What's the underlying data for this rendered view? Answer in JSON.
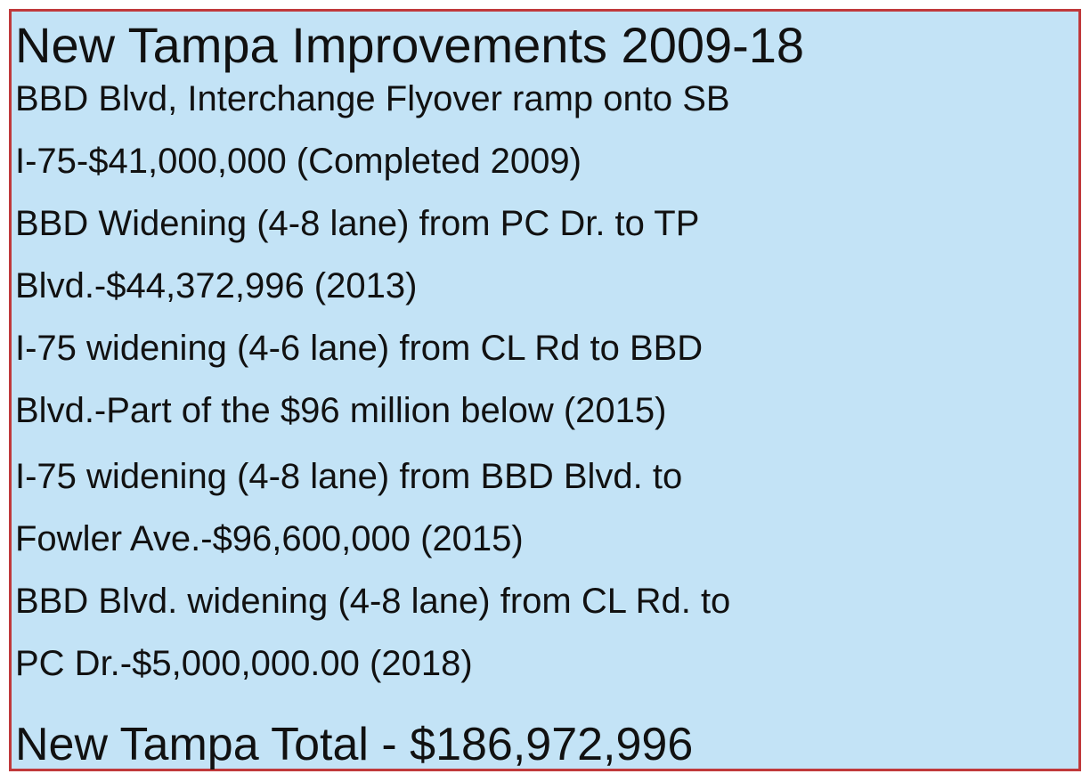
{
  "title": "New Tampa Improvements 2009-18",
  "items": [
    {
      "lines": [
        "BBD Blvd, Interchange Flyover ramp onto SB",
        "I-75-$41,000,000 (Completed 2009)"
      ]
    },
    {
      "lines": [
        "BBD Widening (4-8 lane) from PC Dr. to TP",
        "Blvd.-$44,372,996 (2013)"
      ]
    },
    {
      "lines": [
        "I-75 widening (4-6 lane) from CL Rd to BBD",
        "Blvd.-Part of the $96 million below (2015)"
      ]
    },
    {
      "lines": [
        "I-75 widening (4-8 lane) from BBD Blvd. to",
        "Fowler Ave.-$96,600,000 (2015)"
      ]
    },
    {
      "lines": [
        "BBD Blvd. widening (4-8 lane) from CL Rd. to",
        "PC Dr.-$5,000,000.00 (2018)"
      ]
    }
  ],
  "total": "New Tampa Total - $186,972,996"
}
